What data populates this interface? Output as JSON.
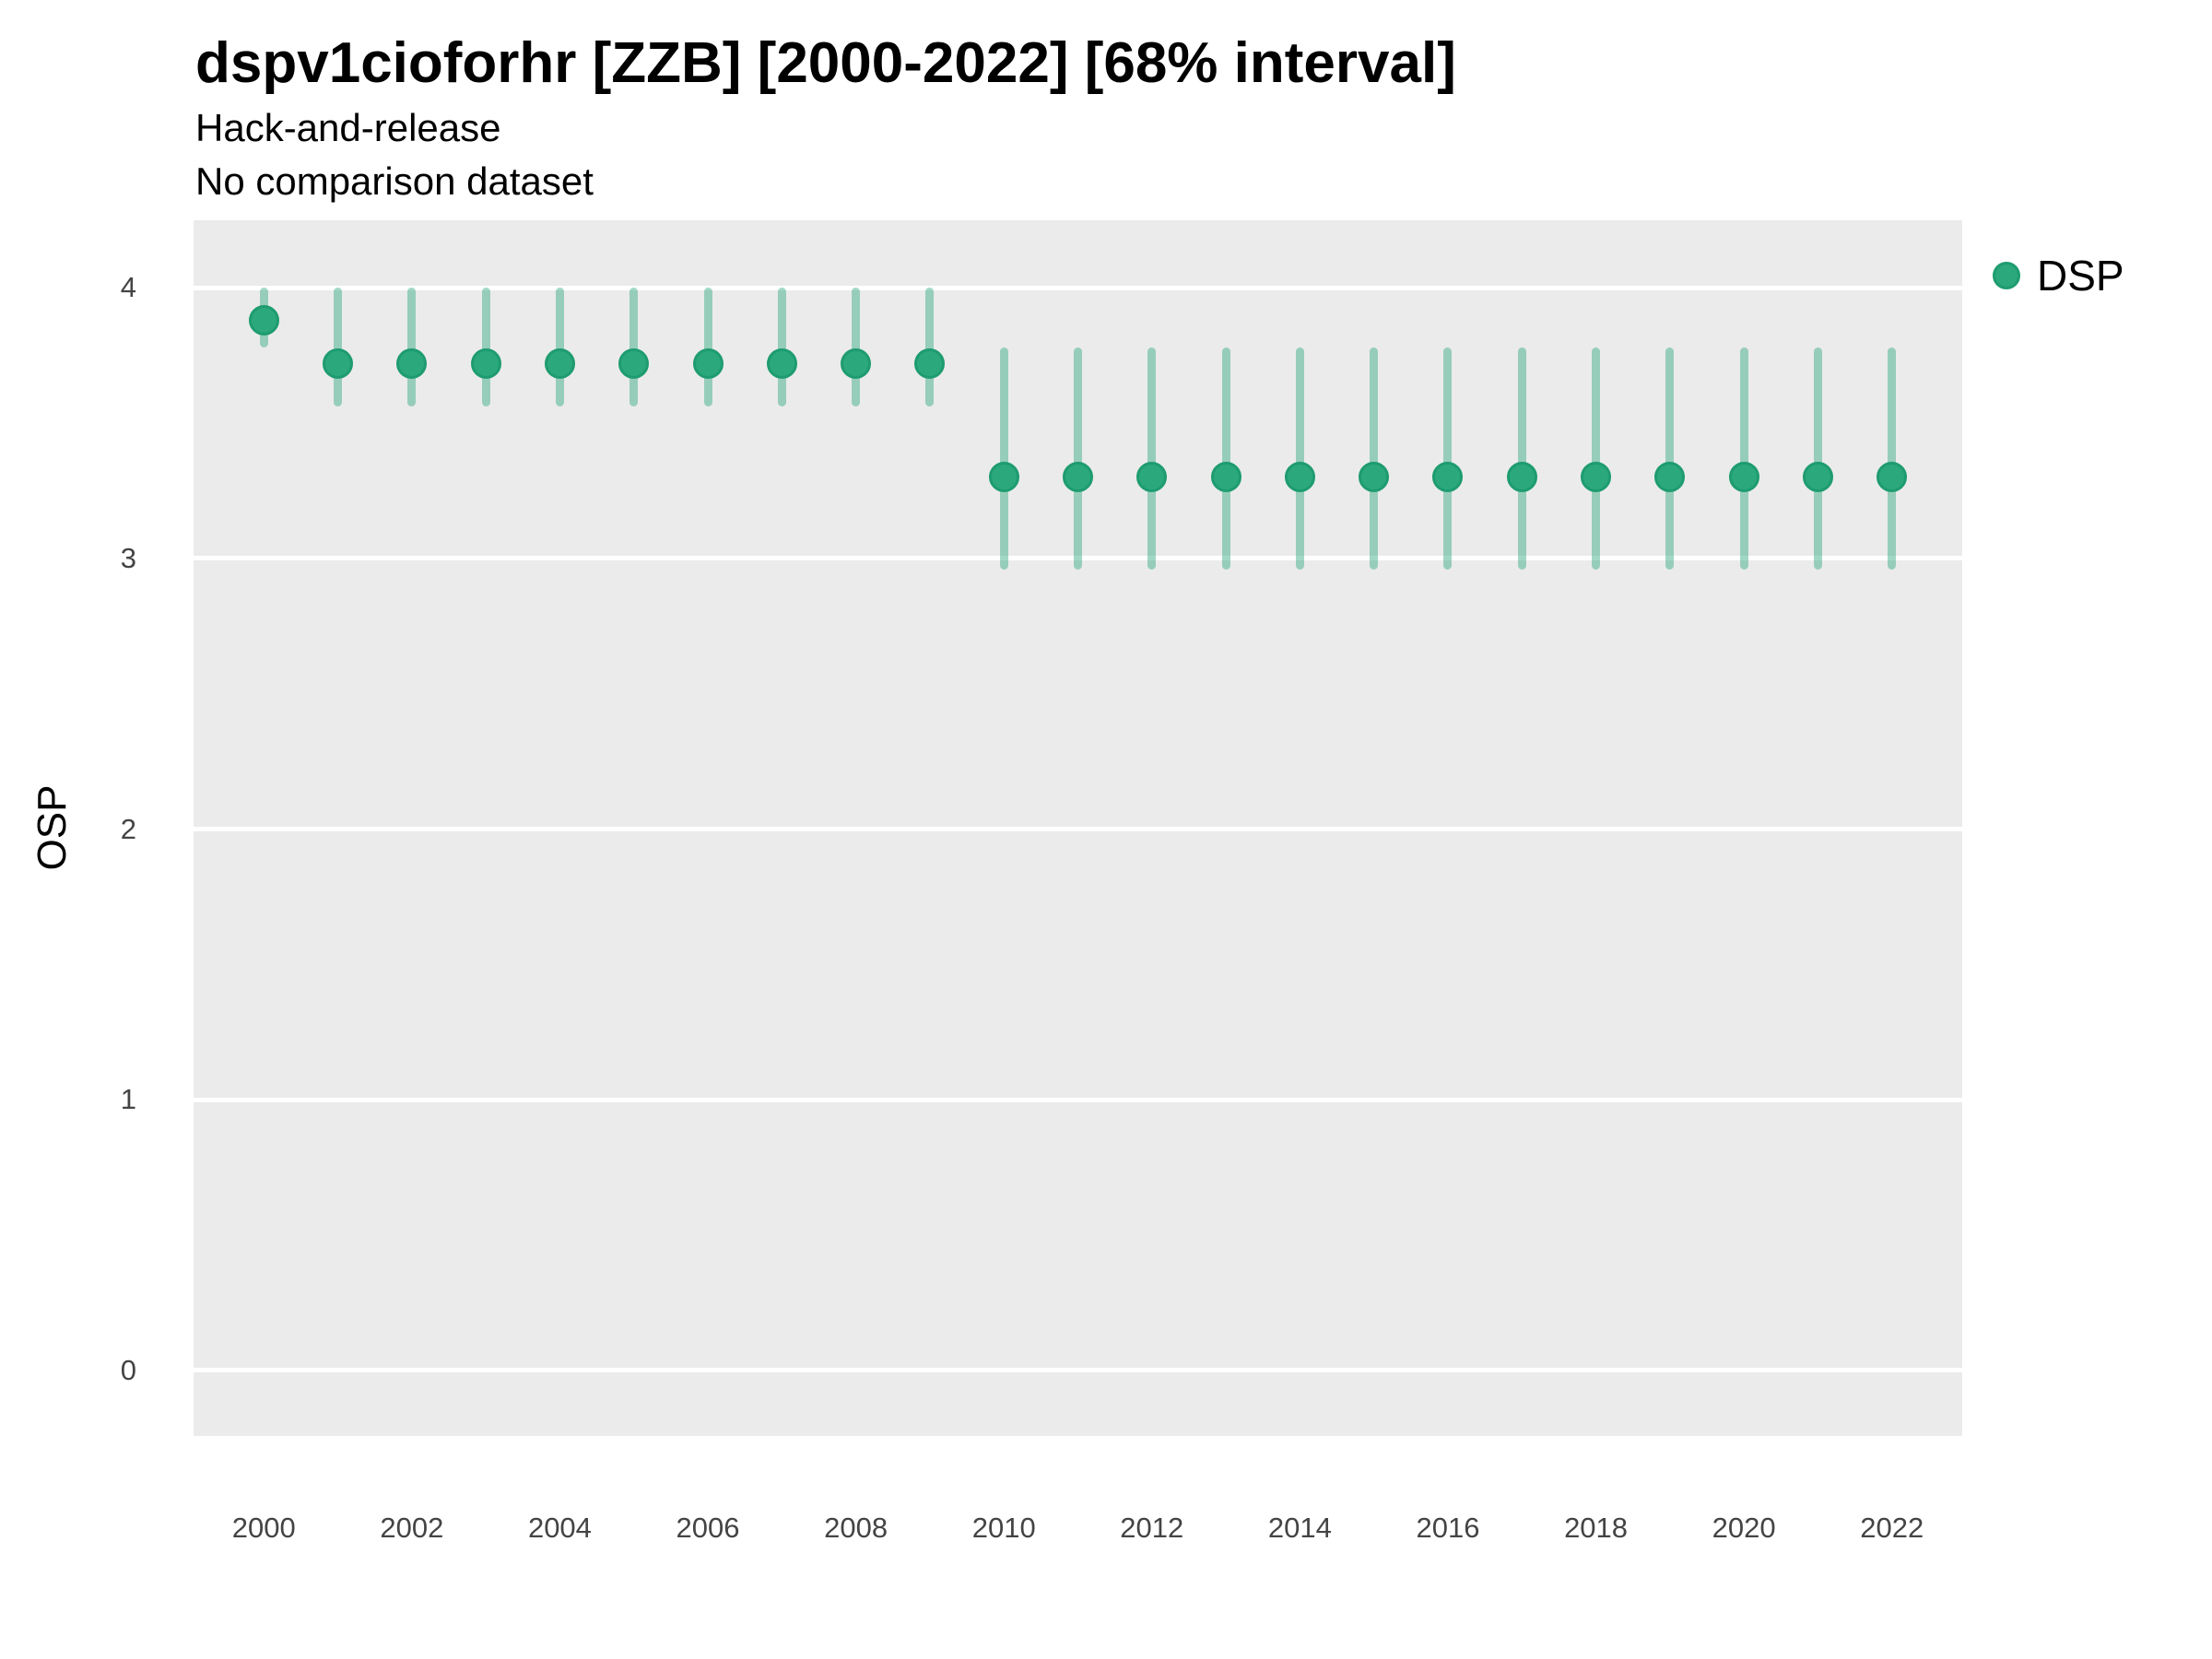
{
  "header": {
    "title": "dspv1cioforhr [ZZB] [2000-2022] [68% interval]",
    "subtitle_line1": "Hack-and-release",
    "subtitle_line2": "No comparison dataset"
  },
  "legend": {
    "position": "right-top",
    "items": [
      {
        "label": "DSP",
        "color": "#2ca87d"
      }
    ]
  },
  "colors": {
    "panel_background": "#EBEBEB",
    "gridline": "#FFFFFF",
    "point_fill": "#2ca87d",
    "point_stroke": "#1e9c70",
    "interval_bar": "rgba(42,166,124,0.44)",
    "tick_text": "#444444",
    "title_text": "#000000"
  },
  "chart_data": {
    "type": "pointrange",
    "title": "dspv1cioforhr [ZZB] [2000-2022] [68% interval]",
    "subtitle": [
      "Hack-and-release",
      "No comparison dataset"
    ],
    "xlabel": "",
    "ylabel": "OSP",
    "legend_position": "right",
    "grid": "major-horizontal-white-on-grey",
    "interval_level": "68%",
    "x": [
      2000,
      2001,
      2002,
      2003,
      2004,
      2005,
      2006,
      2007,
      2008,
      2009,
      2010,
      2011,
      2012,
      2013,
      2014,
      2015,
      2016,
      2017,
      2018,
      2019,
      2020,
      2021,
      2022
    ],
    "series": [
      {
        "name": "DSP",
        "mid": [
          3.88,
          3.72,
          3.72,
          3.72,
          3.72,
          3.72,
          3.72,
          3.72,
          3.72,
          3.72,
          3.3,
          3.3,
          3.3,
          3.3,
          3.3,
          3.3,
          3.3,
          3.3,
          3.3,
          3.3,
          3.3,
          3.3,
          3.3
        ],
        "lo": [
          3.78,
          3.56,
          3.56,
          3.56,
          3.56,
          3.56,
          3.56,
          3.56,
          3.56,
          3.56,
          2.96,
          2.96,
          2.96,
          2.96,
          2.96,
          2.96,
          2.96,
          2.96,
          2.96,
          2.96,
          2.96,
          2.96,
          2.96
        ],
        "hi": [
          4.0,
          4.0,
          4.0,
          4.0,
          4.0,
          4.0,
          4.0,
          4.0,
          4.0,
          4.0,
          3.78,
          3.78,
          3.78,
          3.78,
          3.78,
          3.78,
          3.78,
          3.78,
          3.78,
          3.78,
          3.78,
          3.78,
          3.78
        ]
      }
    ],
    "xticks": [
      2000,
      2002,
      2004,
      2006,
      2008,
      2010,
      2012,
      2014,
      2016,
      2018,
      2020,
      2022
    ],
    "yticks": [
      0,
      1,
      2,
      3,
      4
    ],
    "xlim": [
      1999.05,
      2022.95
    ],
    "ylim": [
      -0.242,
      4.249
    ]
  }
}
